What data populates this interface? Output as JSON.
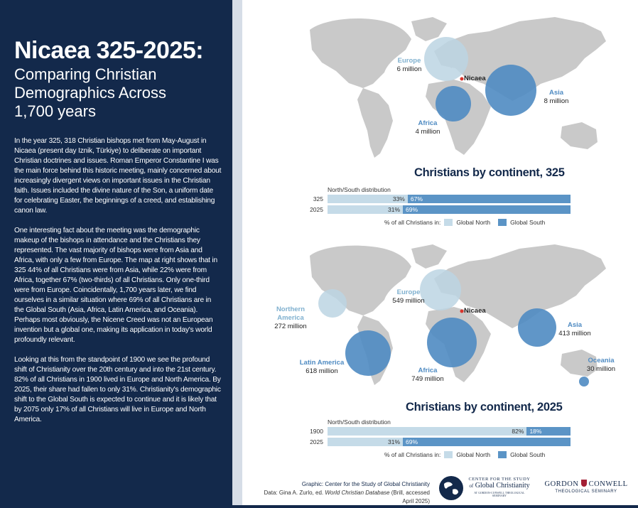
{
  "left": {
    "title": "Nicaea 325-2025:",
    "subtitle": "Comparing Christian Demographics Across 1,700 years",
    "paragraphs": [
      "In the year 325, 318 Christian bishops met from May-August in Nicaea (present day Iznik, Türkiye) to deliberate on important Christian doctrines and issues. Roman Emperor Constantine I was the main force behind this historic meeting, mainly concerned about increasingly divergent views on important issues in the Christian faith. Issues included the divine nature of the Son, a uniform date for celebrating Easter, the beginnings of a creed, and establishing canon law.",
      "One interesting fact about the meeting was the demographic makeup of the bishops in attendance and the Christians they represented. The vast majority of bishops were from Asia and Africa, with only a few from Europe. The map at right shows that in 325 44% of all Christians were from Asia, while 22% were from Africa, together 67% (two-thirds) of all Christians. Only one-third were from Europe. Coincidentally, 1,700 years later, we find ourselves in a similar situation where 69% of all Christians are in the Global South (Asia, Africa, Latin America, and Oceania). Perhaps most obviously, the Nicene Creed was not an European invention but a global one, making its application in today's world profoundly relevant.",
      "Looking at this from the standpoint of 1900 we see the profound shift of Christianity over the 20th century and into the 21st century. 82% of all Christians in 1900 lived in Europe and North America. By 2025, their share had fallen to only 31%. Christianity's demographic shift to the Global South is expected to continue and it is likely that by 2075 only 17% of all Christians will live in Europe and North America."
    ]
  },
  "map325": {
    "title": "Christians by continent, 325",
    "nicaea": "Nicaea",
    "regions": [
      {
        "key": "europe",
        "name": "Europe",
        "value": "6 million",
        "count_m": 6
      },
      {
        "key": "africa",
        "name": "Africa",
        "value": "4 million",
        "count_m": 4
      },
      {
        "key": "asia",
        "name": "Asia",
        "value": "8 million",
        "count_m": 8
      }
    ],
    "distribution_caption": "North/South distribution",
    "rows": [
      {
        "year": "325",
        "north": "33%",
        "south": "67%",
        "north_pct": 33
      },
      {
        "year": "2025",
        "north": "31%",
        "south": "69%",
        "north_pct": 31
      }
    ],
    "legend_prefix": "% of all Christians in:",
    "legend_north": "Global North",
    "legend_south": "Global South"
  },
  "map2025": {
    "title": "Christians by continent, 2025",
    "nicaea": "Nicaea",
    "regions": [
      {
        "key": "northamerica",
        "name": "Northern America",
        "value": "272 million",
        "count_m": 272
      },
      {
        "key": "europe",
        "name": "Europe",
        "value": "549 million",
        "count_m": 549
      },
      {
        "key": "asia",
        "name": "Asia",
        "value": "413 million",
        "count_m": 413
      },
      {
        "key": "latinamerica",
        "name": "Latin America",
        "value": "618 million",
        "count_m": 618
      },
      {
        "key": "africa",
        "name": "Africa",
        "value": "749 million",
        "count_m": 749
      },
      {
        "key": "oceania",
        "name": "Oceania",
        "value": "30 million",
        "count_m": 30
      }
    ],
    "distribution_caption": "North/South distribution",
    "rows": [
      {
        "year": "1900",
        "north": "82%",
        "south": "18%",
        "north_pct": 82
      },
      {
        "year": "2025",
        "north": "31%",
        "south": "69%",
        "north_pct": 31
      }
    ],
    "legend_prefix": "% of all Christians in:",
    "legend_north": "Global North",
    "legend_south": "Global South"
  },
  "credits": {
    "graphic_label": "Graphic:",
    "graphic": "Center for the Study of Global Christianity",
    "data_label": "Data:",
    "data_pre": "Gina A. Zurlo, ed.",
    "data_title": "World Christian Database",
    "data_post": "(Brill, accessed April 2025)"
  },
  "logos": {
    "csgc_line1": "CENTER FOR THE STUDY",
    "csgc_line2": "of",
    "csgc_line3": "Global Christianity",
    "csgc_line4": "AT GORDON-CONWELL THEOLOGICAL SEMINARY",
    "gc_line1a": "GORDON",
    "gc_line1b": "CONWELL",
    "gc_line2": "THEOLOGICAL SEMINARY"
  },
  "colors": {
    "navy": "#13294b",
    "north": "#c5dbe8",
    "south": "#5b94c6",
    "north_bubble": "#bcd5e3",
    "south_bubble": "#4f8bc2",
    "land": "#c9c9c9"
  }
}
